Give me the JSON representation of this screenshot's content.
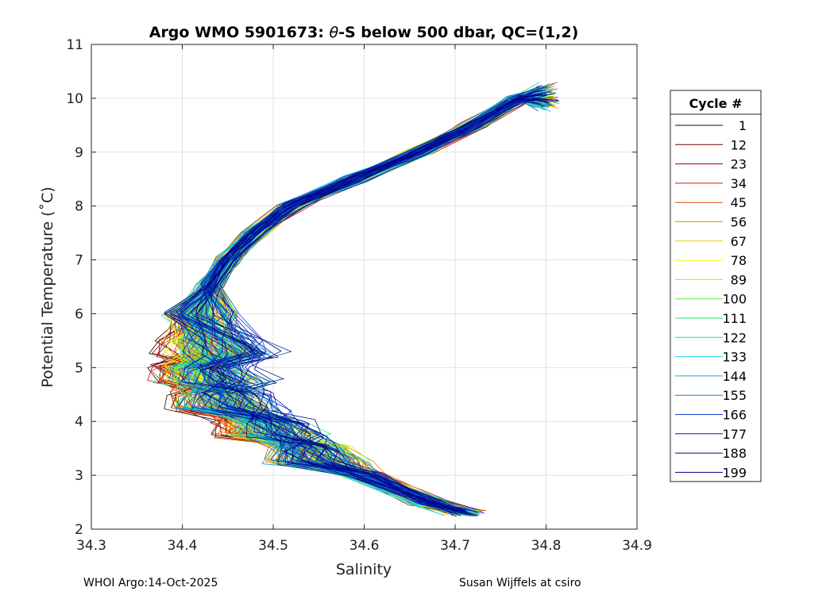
{
  "chart_data": {
    "type": "line",
    "title_prefix": "Argo WMO 5901673: ",
    "title_theta": "θ",
    "title_suffix": "-S below 500 dbar,  QC=(1,2)",
    "xlabel": "Salinity",
    "ylabel": "Potential Temperature (˚C)",
    "xlim": [
      34.3,
      34.9
    ],
    "ylim": [
      2,
      11
    ],
    "xticks": [
      "34.3",
      "34.4",
      "34.5",
      "34.6",
      "34.7",
      "34.8",
      "34.9"
    ],
    "yticks": [
      "2",
      "3",
      "4",
      "5",
      "6",
      "7",
      "8",
      "9",
      "10",
      "11"
    ],
    "grid": true,
    "legend": {
      "title": "Cycle #",
      "position": "right-outside",
      "entries": [
        "1",
        "12",
        "23",
        "34",
        "45",
        "56",
        "67",
        "78",
        "89",
        "100",
        "111",
        "122",
        "133",
        "144",
        "155",
        "166",
        "177",
        "188",
        "199"
      ],
      "colors": [
        "#2a0000",
        "#6b0000",
        "#a80000",
        "#d41818",
        "#e34a00",
        "#d99a00",
        "#e0d000",
        "#f2f200",
        "#a8f000",
        "#50f030",
        "#25e070",
        "#10e0b8",
        "#18d4e8",
        "#0fb0c8",
        "#0a80c8",
        "#0d40c8",
        "#1010a8",
        "#0a0a70",
        "#000090"
      ]
    },
    "profile_count": 199,
    "profile_template": {
      "theta": [
        10.25,
        10,
        9.5,
        9,
        8.5,
        8,
        7.5,
        7,
        6.5,
        6,
        5.5,
        5,
        4.5,
        4,
        3.5,
        3,
        2.5,
        2.3
      ],
      "salinity": [
        34.8,
        34.77,
        34.72,
        34.66,
        34.59,
        34.52,
        34.48,
        34.45,
        34.43,
        34.42,
        34.41,
        34.4,
        34.42,
        34.47,
        34.54,
        34.6,
        34.67,
        34.71
      ]
    }
  },
  "footer": {
    "left": "WHOI Argo:14-Oct-2025",
    "right": "Susan Wijffels at csiro"
  }
}
